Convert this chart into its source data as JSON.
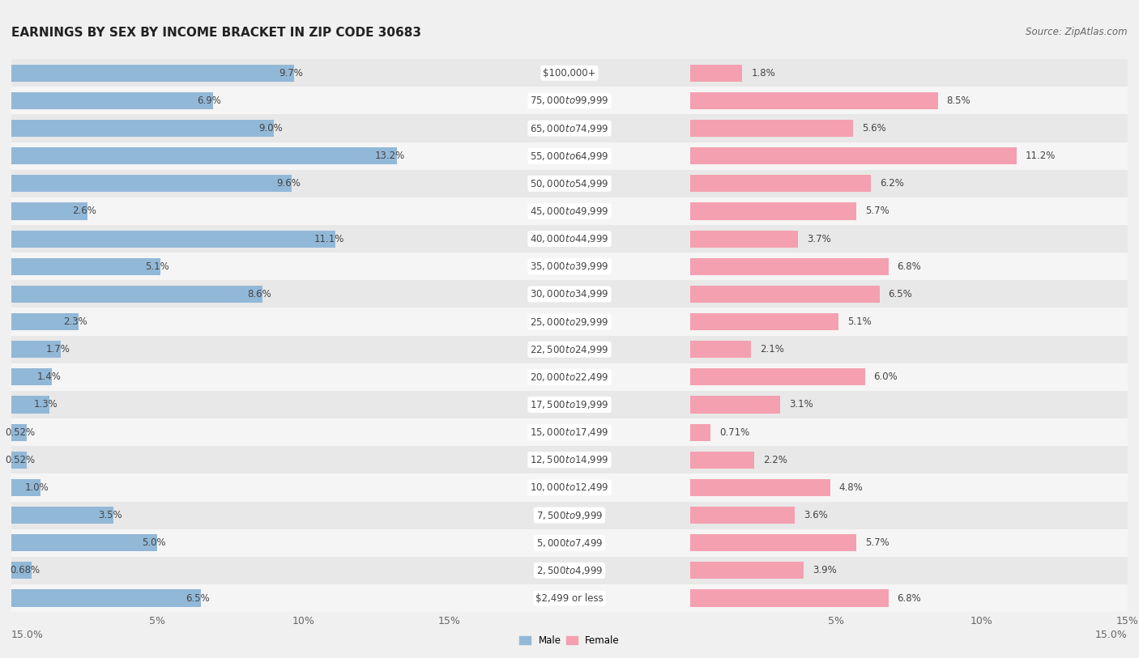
{
  "title": "EARNINGS BY SEX BY INCOME BRACKET IN ZIP CODE 30683",
  "source": "Source: ZipAtlas.com",
  "categories": [
    "$2,499 or less",
    "$2,500 to $4,999",
    "$5,000 to $7,499",
    "$7,500 to $9,999",
    "$10,000 to $12,499",
    "$12,500 to $14,999",
    "$15,000 to $17,499",
    "$17,500 to $19,999",
    "$20,000 to $22,499",
    "$22,500 to $24,999",
    "$25,000 to $29,999",
    "$30,000 to $34,999",
    "$35,000 to $39,999",
    "$40,000 to $44,999",
    "$45,000 to $49,999",
    "$50,000 to $54,999",
    "$55,000 to $64,999",
    "$65,000 to $74,999",
    "$75,000 to $99,999",
    "$100,000+"
  ],
  "male": [
    6.5,
    0.68,
    5.0,
    3.5,
    1.0,
    0.52,
    0.52,
    1.3,
    1.4,
    1.7,
    2.3,
    8.6,
    5.1,
    11.1,
    2.6,
    9.6,
    13.2,
    9.0,
    6.9,
    9.7
  ],
  "female": [
    6.8,
    3.9,
    5.7,
    3.6,
    4.8,
    2.2,
    0.71,
    3.1,
    6.0,
    2.1,
    5.1,
    6.5,
    6.8,
    3.7,
    5.7,
    6.2,
    11.2,
    5.6,
    8.5,
    1.8
  ],
  "male_color": "#92b8d8",
  "female_color": "#f4a0b0",
  "bg_color": "#f0f0f0",
  "row_bg_even": "#f5f5f5",
  "row_bg_odd": "#e8e8e8",
  "xlim": 15.0,
  "bar_height": 0.62,
  "title_fontsize": 11,
  "label_fontsize": 8.5,
  "tick_fontsize": 9,
  "source_fontsize": 8.5,
  "cat_fontsize": 8.5
}
